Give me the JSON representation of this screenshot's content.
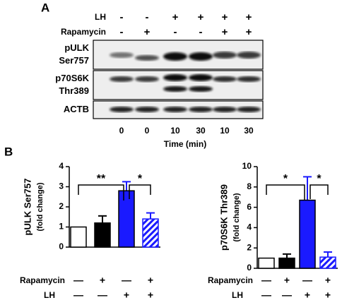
{
  "panel_a": {
    "label": "A",
    "treatments": [
      {
        "name": "LH",
        "signs": [
          "-",
          "-",
          "+",
          "+",
          "+",
          "+"
        ]
      },
      {
        "name": "Rapamycin",
        "signs": [
          "-",
          "+",
          "-",
          "-",
          "+",
          "+"
        ]
      }
    ],
    "blots": [
      {
        "label": [
          "pULK",
          "Ser757"
        ]
      },
      {
        "label": [
          "p70S6K",
          "Thr389"
        ]
      },
      {
        "label": [
          "ACTB"
        ]
      }
    ],
    "times": [
      0,
      0,
      10,
      30,
      10,
      30
    ],
    "time_label": "Time (min)"
  },
  "panel_b_label": "B",
  "chart_data": [
    {
      "type": "bar",
      "ylabel": "pULK Ser757",
      "ylabel_sub": "(fold change)",
      "values": [
        1,
        1.2,
        2.8,
        1.4
      ],
      "errors": [
        0,
        0.35,
        0.45,
        0.3
      ],
      "colors": [
        "#ffffff",
        "#000000",
        "#1a1aff",
        "hatch"
      ],
      "ylim": [
        0,
        4
      ],
      "yticks": [
        0,
        1,
        2,
        3,
        4
      ],
      "conditions": [
        {
          "name": "Rapamycin",
          "signs": [
            "—",
            "+",
            "—",
            "+"
          ]
        },
        {
          "name": "LH",
          "signs": [
            "—",
            "—",
            "+",
            "+"
          ]
        }
      ],
      "annotations": [
        {
          "text": "**",
          "from": 0,
          "to": 2
        },
        {
          "text": "*",
          "from": 2,
          "to": 3
        }
      ]
    },
    {
      "type": "bar",
      "ylabel": "p70S6K Thr389",
      "ylabel_sub": "(fold change)",
      "values": [
        1,
        1,
        6.7,
        1.1
      ],
      "errors": [
        0,
        0.4,
        2.3,
        0.5
      ],
      "colors": [
        "#ffffff",
        "#000000",
        "#1a1aff",
        "hatch"
      ],
      "ylim": [
        0,
        10
      ],
      "yticks": [
        0,
        2,
        4,
        6,
        8,
        10
      ],
      "conditions": [
        {
          "name": "Rapamycin",
          "signs": [
            "—",
            "+",
            "—",
            "+"
          ]
        },
        {
          "name": "LH",
          "signs": [
            "—",
            "—",
            "+",
            "+"
          ]
        }
      ],
      "annotations": [
        {
          "text": "*",
          "from": 0,
          "to": 2
        },
        {
          "text": "*",
          "from": 2,
          "to": 3
        }
      ]
    }
  ]
}
